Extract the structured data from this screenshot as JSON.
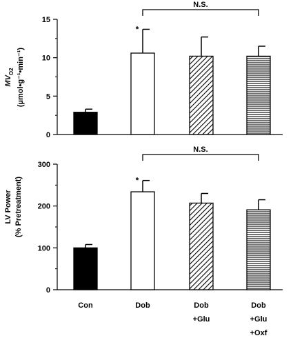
{
  "chart_data": [
    {
      "type": "bar",
      "ylabel_line1": "MV",
      "ylabel_sub": "O2",
      "ylabel_line2": "(µmol•g⁻¹•min⁻¹)",
      "ylim": [
        0,
        15
      ],
      "yticks": [
        0,
        5,
        10,
        15
      ],
      "categories": [
        "Con",
        "Dob",
        "Dob +Glu",
        "Dob +Glu +Oxf"
      ],
      "values": [
        2.9,
        10.6,
        10.2,
        10.2
      ],
      "errors": [
        0.4,
        3.1,
        2.5,
        1.3
      ],
      "fills": [
        "solid",
        "open",
        "diagonal",
        "horizontal"
      ],
      "significance": [
        "",
        "*",
        "",
        ""
      ],
      "bracket": {
        "from": 1,
        "to": 3,
        "label": "N.S."
      }
    },
    {
      "type": "bar",
      "ylabel_line1": "LV Power",
      "ylabel_line2": "(% Pretreatment)",
      "ylim": [
        0,
        300
      ],
      "yticks": [
        0,
        100,
        200,
        300
      ],
      "categories": [
        "Con",
        "Dob",
        "Dob +Glu",
        "Dob +Glu +Oxf"
      ],
      "values": [
        100,
        234,
        207,
        191
      ],
      "errors": [
        8,
        27,
        23,
        24
      ],
      "fills": [
        "solid",
        "open",
        "diagonal",
        "horizontal"
      ],
      "significance": [
        "",
        "*",
        "",
        ""
      ],
      "bracket": {
        "from": 1,
        "to": 3,
        "label": "N.S."
      }
    }
  ],
  "category_labels": [
    {
      "lines": [
        "Con"
      ]
    },
    {
      "lines": [
        "Dob"
      ]
    },
    {
      "lines": [
        "Dob",
        "+Glu"
      ]
    },
    {
      "lines": [
        "Dob",
        "+Glu",
        "+Oxf"
      ]
    }
  ],
  "colors": {
    "ink": "#000000",
    "background": "#ffffff"
  }
}
